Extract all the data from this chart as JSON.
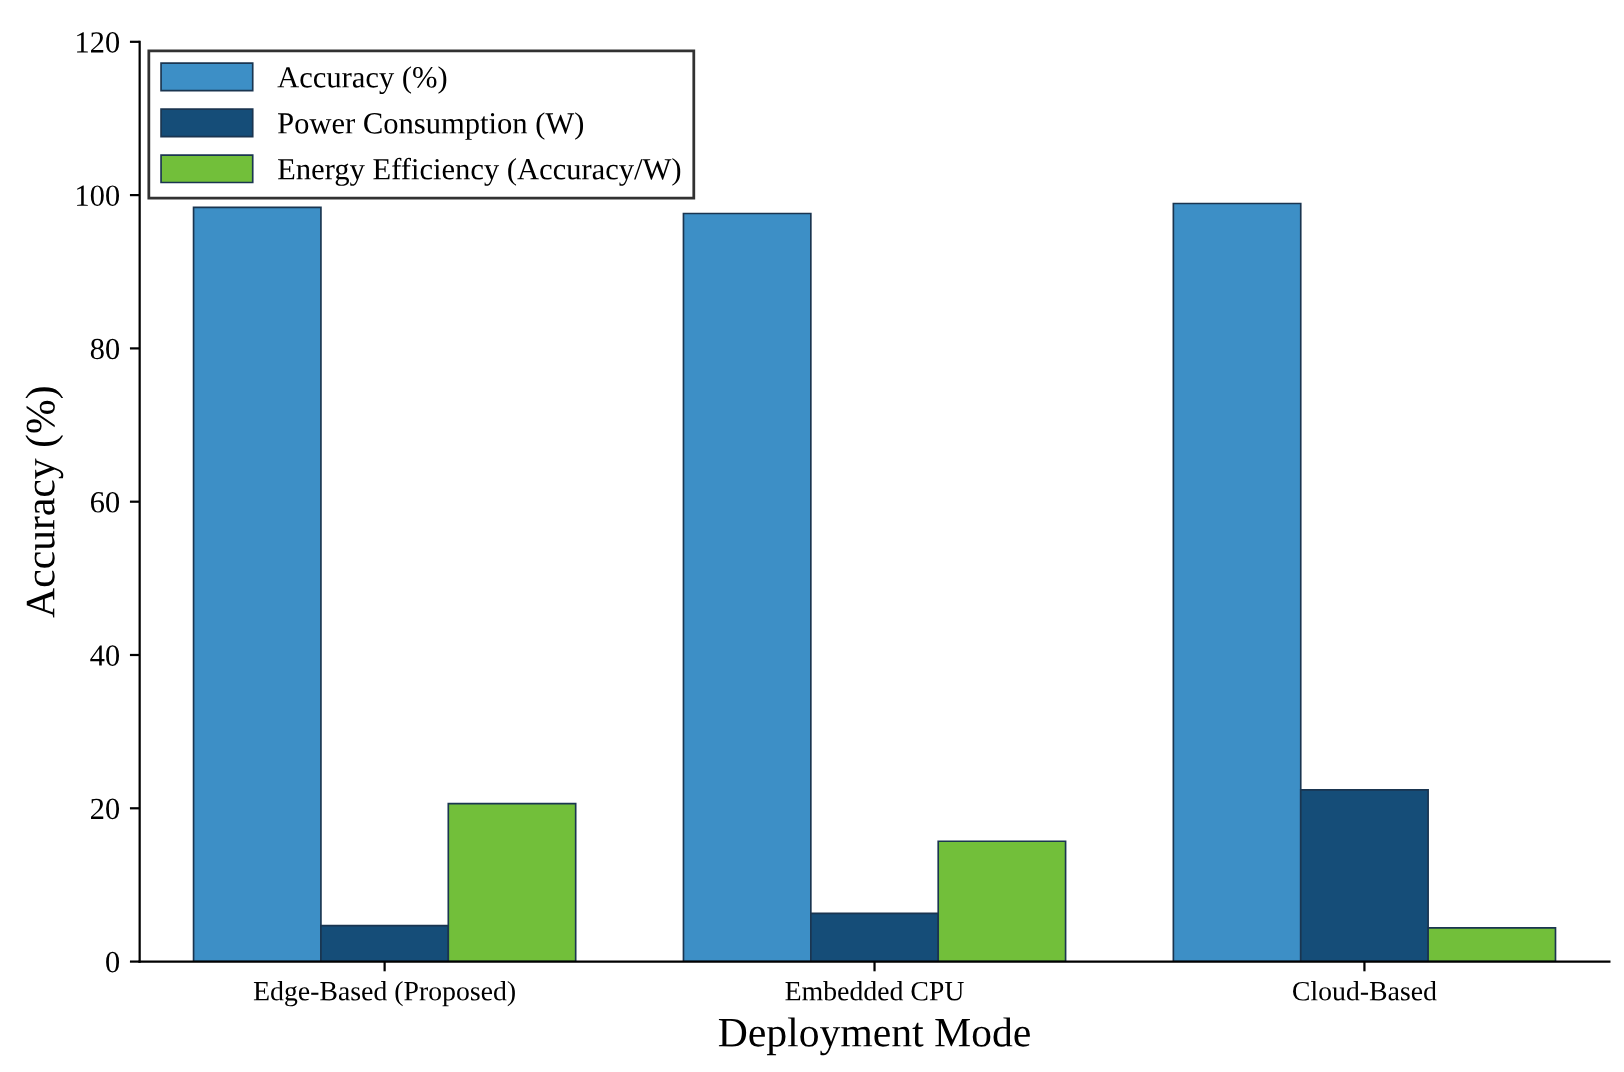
{
  "chart_data": {
    "type": "bar",
    "xlabel": "Deployment Mode",
    "ylabel": "Accuracy (%)",
    "categories": [
      "Edge-Based (Proposed)",
      "Embedded CPU",
      "Cloud-Based"
    ],
    "series": [
      {
        "name": "Accuracy (%)",
        "color": "#3d8fc6",
        "values": [
          98.4,
          97.6,
          98.9
        ]
      },
      {
        "name": "Power Consumption (W)",
        "color": "#154d78",
        "values": [
          4.7,
          6.3,
          22.4
        ]
      },
      {
        "name": "Energy Efficiency (Accuracy/W)",
        "color": "#72bf3a",
        "values": [
          20.6,
          15.7,
          4.4
        ]
      }
    ],
    "ylim": [
      0,
      120
    ],
    "yticks": [
      0,
      20,
      40,
      60,
      80,
      100,
      120
    ],
    "grid": false,
    "legend": "top left"
  }
}
